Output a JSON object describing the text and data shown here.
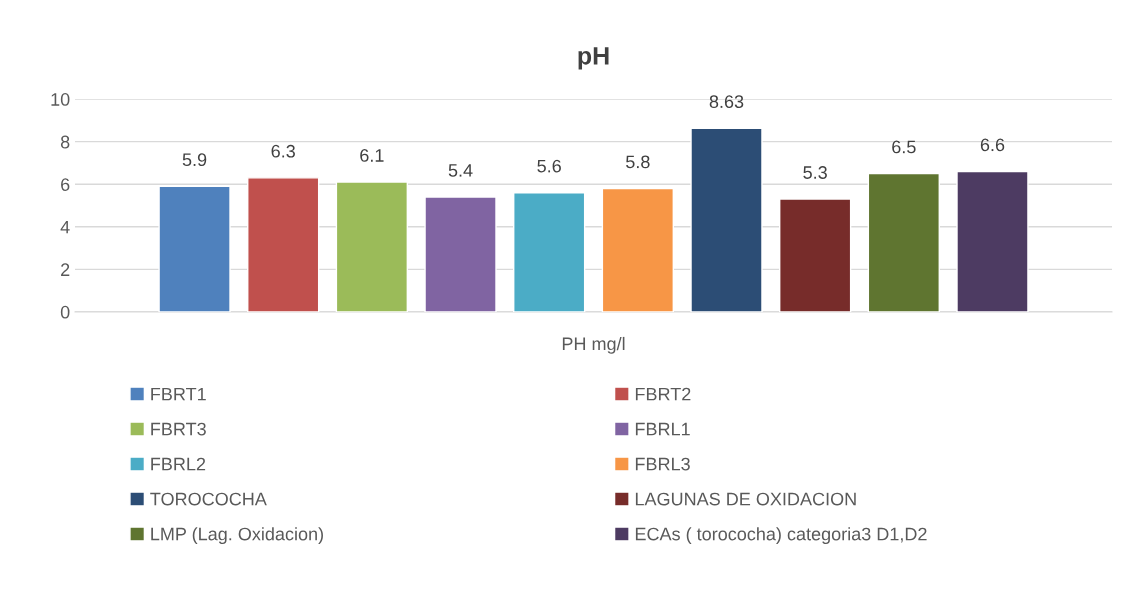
{
  "chart_data": {
    "type": "bar",
    "title": "pH",
    "categories": [
      "PH mg/l"
    ],
    "series": [
      {
        "name": "FBRT1",
        "color": "#4f81bd",
        "values": [
          5.9
        ]
      },
      {
        "name": "FBRT2",
        "color": "#c0504d",
        "values": [
          6.3
        ]
      },
      {
        "name": "FBRT3",
        "color": "#9bbb59",
        "values": [
          6.1
        ]
      },
      {
        "name": "FBRL1",
        "color": "#8064a2",
        "values": [
          5.4
        ]
      },
      {
        "name": "FBRL2",
        "color": "#4bacc6",
        "values": [
          5.6
        ]
      },
      {
        "name": "FBRL3",
        "color": "#f79646",
        "values": [
          5.8
        ]
      },
      {
        "name": "TOROCOCHA",
        "color": "#2c4d75",
        "values": [
          8.63
        ]
      },
      {
        "name": "LAGUNAS DE OXIDACION",
        "color": "#772c2a",
        "values": [
          5.3
        ]
      },
      {
        "name": "LMP (Lag. Oxidacion)",
        "color": "#5f7530",
        "values": [
          6.5
        ]
      },
      {
        "name": "ECAs ( torococha) categoria3 D1,D2",
        "color": "#4d3b62",
        "values": [
          6.6
        ]
      }
    ],
    "ylim": [
      0,
      10
    ],
    "yticks": [
      0,
      2,
      4,
      6,
      8,
      10
    ],
    "grid": "y",
    "legend": "bottom",
    "data_labels": true
  }
}
